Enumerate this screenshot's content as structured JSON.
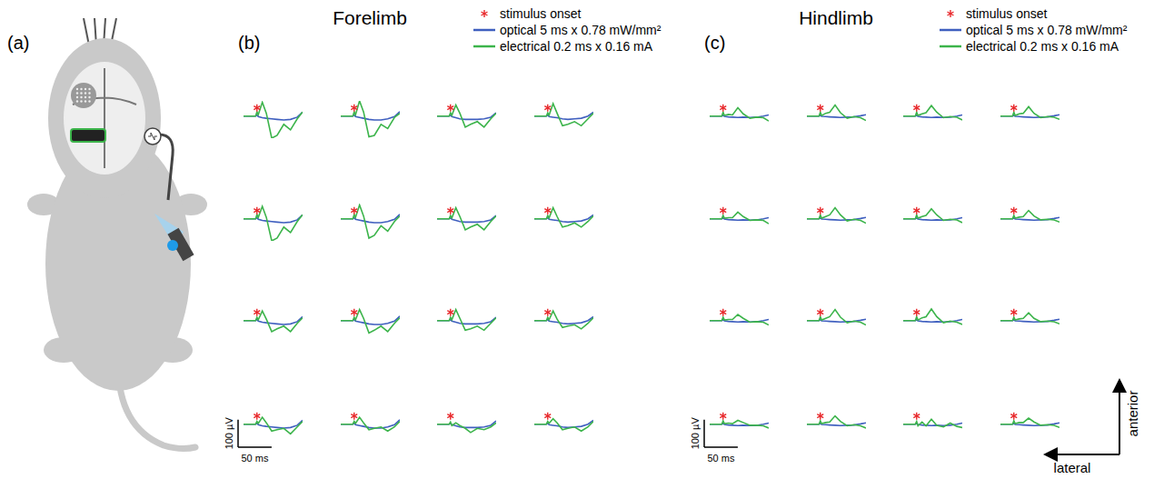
{
  "figure": {
    "panel_label": "(a)",
    "directions": {
      "up": "anterior",
      "left": "lateral"
    }
  },
  "chart_data": [
    {
      "type": "line",
      "title": "Forelimb",
      "letter": "(b)",
      "tick_labels": false,
      "legend": "upper right",
      "x": [
        -20,
        -2,
        0,
        2,
        8,
        14,
        22,
        30,
        40,
        50,
        60,
        68
      ],
      "onset": {
        "name": "stimulus onset",
        "x": 0,
        "marker": "asterisk",
        "color": "#e8272a"
      },
      "series": [
        {
          "name": "optical 5 ms x 0.78 mW/mm²",
          "color": "#3f5fbf"
        },
        {
          "name": "electrical 0.2 ms x 0.16 mA",
          "color": "#3cb44b"
        }
      ],
      "scale_bar": {
        "x": 50,
        "x_label": "50 ms",
        "y": 100,
        "y_label": "100 µV"
      },
      "traces": [
        [
          [
            0,
            0,
            4,
            -2,
            -6,
            -8,
            -10,
            -12,
            -14,
            -12,
            -4,
            14
          ],
          [
            0,
            0,
            15,
            5,
            50,
            10,
            -80,
            -70,
            -30,
            -50,
            -10,
            15
          ]
        ],
        [
          [
            0,
            0,
            4,
            -2,
            -5,
            -8,
            -12,
            -14,
            -14,
            -10,
            -2,
            16
          ],
          [
            0,
            0,
            15,
            5,
            55,
            15,
            -75,
            -70,
            -30,
            -45,
            -5,
            10
          ]
        ],
        [
          [
            0,
            0,
            3,
            -2,
            -6,
            -10,
            -12,
            -12,
            -12,
            -10,
            -4,
            12
          ],
          [
            0,
            0,
            12,
            3,
            40,
            10,
            -40,
            -30,
            -20,
            -40,
            -10,
            10
          ]
        ],
        [
          [
            0,
            0,
            4,
            -2,
            -4,
            -6,
            -10,
            -12,
            -10,
            -8,
            0,
            14
          ],
          [
            0,
            0,
            12,
            3,
            45,
            10,
            -35,
            -30,
            -20,
            -35,
            -10,
            10
          ]
        ],
        [
          [
            0,
            0,
            4,
            -2,
            -6,
            -8,
            -10,
            -12,
            -14,
            -12,
            -4,
            14
          ],
          [
            0,
            0,
            15,
            5,
            45,
            5,
            -80,
            -70,
            -30,
            -50,
            -10,
            15
          ]
        ],
        [
          [
            0,
            0,
            4,
            -2,
            -5,
            -8,
            -12,
            -14,
            -14,
            -10,
            -2,
            16
          ],
          [
            0,
            0,
            15,
            5,
            50,
            10,
            -70,
            -60,
            -25,
            -45,
            -10,
            10
          ]
        ],
        [
          [
            0,
            0,
            3,
            -2,
            -6,
            -10,
            -12,
            -12,
            -12,
            -10,
            -4,
            12
          ],
          [
            0,
            0,
            12,
            3,
            40,
            8,
            -40,
            -30,
            -20,
            -40,
            -10,
            10
          ]
        ],
        [
          [
            0,
            0,
            4,
            -2,
            -4,
            -6,
            -10,
            -12,
            -10,
            -8,
            0,
            14
          ],
          [
            0,
            0,
            12,
            3,
            40,
            8,
            -30,
            -25,
            -15,
            -30,
            -10,
            10
          ]
        ],
        [
          [
            0,
            0,
            4,
            -2,
            -6,
            -8,
            -10,
            -12,
            -14,
            -12,
            -4,
            14
          ],
          [
            0,
            0,
            12,
            3,
            35,
            5,
            -40,
            -30,
            -20,
            -40,
            -10,
            10
          ]
        ],
        [
          [
            0,
            0,
            4,
            -2,
            -5,
            -8,
            -12,
            -14,
            -14,
            -10,
            -2,
            16
          ],
          [
            0,
            0,
            12,
            3,
            40,
            8,
            -45,
            -35,
            -20,
            -40,
            -10,
            10
          ]
        ],
        [
          [
            0,
            0,
            3,
            -2,
            -6,
            -10,
            -12,
            -12,
            -12,
            -10,
            -4,
            12
          ],
          [
            0,
            0,
            12,
            3,
            40,
            8,
            -35,
            -30,
            -20,
            -35,
            -10,
            10
          ]
        ],
        [
          [
            0,
            0,
            4,
            -2,
            -4,
            -6,
            -10,
            -12,
            -10,
            -8,
            0,
            14
          ],
          [
            0,
            0,
            12,
            3,
            35,
            5,
            -25,
            -20,
            -15,
            -30,
            -10,
            10
          ]
        ],
        [
          [
            0,
            0,
            4,
            -2,
            -6,
            -8,
            -10,
            -12,
            -14,
            -12,
            -4,
            14
          ],
          [
            0,
            0,
            10,
            3,
            25,
            5,
            -25,
            -20,
            -15,
            -35,
            -10,
            10
          ]
        ],
        [
          [
            0,
            0,
            4,
            -2,
            -5,
            -8,
            -12,
            -14,
            -14,
            -10,
            -2,
            16
          ],
          [
            0,
            0,
            10,
            3,
            25,
            5,
            -20,
            -15,
            -10,
            -25,
            -10,
            10
          ]
        ],
        [
          [
            0,
            0,
            3,
            -2,
            -6,
            -10,
            -12,
            -12,
            -12,
            -10,
            -4,
            12
          ],
          [
            0,
            0,
            8,
            -5,
            5,
            -5,
            -15,
            -30,
            -15,
            -20,
            -10,
            5
          ]
        ],
        [
          [
            0,
            0,
            4,
            -2,
            -4,
            -6,
            -10,
            -12,
            -10,
            -8,
            0,
            14
          ],
          [
            0,
            0,
            10,
            3,
            20,
            5,
            -20,
            -15,
            -10,
            -25,
            -10,
            10
          ]
        ]
      ]
    },
    {
      "type": "line",
      "title": "Hindlimb",
      "letter": "(c)",
      "tick_labels": false,
      "legend": "upper right",
      "x": [
        -20,
        -2,
        0,
        2,
        8,
        14,
        22,
        30,
        40,
        50,
        60,
        68
      ],
      "onset": {
        "name": "stimulus onset",
        "x": 0,
        "marker": "asterisk",
        "color": "#e8272a"
      },
      "series": [
        {
          "name": "optical 5 ms x 0.78 mW/mm²",
          "color": "#3f5fbf"
        },
        {
          "name": "electrical 0.2 ms x 0.16 mA",
          "color": "#3cb44b"
        }
      ],
      "scale_bar": {
        "x": 50,
        "x_label": "50 ms",
        "y": 100,
        "y_label": "100 µV"
      },
      "traces": [
        [
          [
            0,
            0,
            3,
            -1,
            -3,
            -4,
            -5,
            -4,
            -5,
            -4,
            0,
            4
          ],
          [
            0,
            0,
            14,
            2,
            6,
            4,
            30,
            8,
            -8,
            -4,
            -6,
            -18
          ]
        ],
        [
          [
            0,
            0,
            3,
            -1,
            -2,
            -3,
            -4,
            -5,
            -4,
            -3,
            1,
            5
          ],
          [
            0,
            0,
            14,
            2,
            10,
            14,
            40,
            12,
            -8,
            -2,
            -6,
            -16
          ]
        ],
        [
          [
            0,
            0,
            3,
            -1,
            -3,
            -4,
            -5,
            -4,
            -5,
            -4,
            0,
            4
          ],
          [
            0,
            0,
            14,
            2,
            8,
            12,
            38,
            14,
            -6,
            -2,
            -4,
            -14
          ]
        ],
        [
          [
            0,
            0,
            3,
            -1,
            -2,
            -3,
            -4,
            -5,
            -4,
            -3,
            1,
            5
          ],
          [
            0,
            0,
            14,
            2,
            8,
            10,
            34,
            10,
            -6,
            -2,
            -4,
            -12
          ]
        ],
        [
          [
            0,
            0,
            3,
            -1,
            -3,
            -4,
            -5,
            -4,
            -5,
            -4,
            0,
            4
          ],
          [
            0,
            0,
            12,
            2,
            4,
            4,
            24,
            8,
            -6,
            -4,
            -6,
            -18
          ]
        ],
        [
          [
            0,
            0,
            3,
            -1,
            -2,
            -3,
            -4,
            -5,
            -4,
            -3,
            1,
            5
          ],
          [
            0,
            0,
            14,
            2,
            8,
            14,
            40,
            14,
            -8,
            -2,
            -6,
            -16
          ]
        ],
        [
          [
            0,
            0,
            3,
            -1,
            -3,
            -4,
            -5,
            -4,
            -5,
            -4,
            0,
            4
          ],
          [
            0,
            0,
            14,
            2,
            8,
            12,
            36,
            14,
            -6,
            -2,
            -4,
            -14
          ]
        ],
        [
          [
            0,
            0,
            3,
            -1,
            -2,
            -3,
            -4,
            -5,
            -4,
            -3,
            1,
            5
          ],
          [
            0,
            0,
            12,
            2,
            6,
            8,
            30,
            10,
            -4,
            -2,
            -4,
            -12
          ]
        ],
        [
          [
            0,
            0,
            3,
            -1,
            -3,
            -4,
            -5,
            -4,
            -5,
            -4,
            0,
            4
          ],
          [
            0,
            0,
            12,
            2,
            4,
            4,
            22,
            8,
            -6,
            -4,
            -6,
            -16
          ]
        ],
        [
          [
            0,
            0,
            3,
            -1,
            -2,
            -3,
            -4,
            -5,
            -4,
            -3,
            1,
            5
          ],
          [
            0,
            0,
            14,
            2,
            8,
            14,
            40,
            12,
            -8,
            -2,
            -6,
            -16
          ]
        ],
        [
          [
            0,
            0,
            3,
            -1,
            -3,
            -4,
            -5,
            -4,
            -5,
            -4,
            0,
            4
          ],
          [
            0,
            0,
            14,
            2,
            10,
            14,
            42,
            14,
            -8,
            -2,
            -6,
            -14
          ]
        ],
        [
          [
            0,
            0,
            3,
            -1,
            -2,
            -3,
            -4,
            -5,
            -4,
            -3,
            1,
            5
          ],
          [
            0,
            0,
            12,
            2,
            6,
            8,
            28,
            8,
            -4,
            -2,
            -4,
            -12
          ]
        ],
        [
          [
            0,
            0,
            3,
            -1,
            -3,
            -4,
            -5,
            -4,
            -5,
            -4,
            0,
            4
          ],
          [
            0,
            0,
            12,
            2,
            4,
            2,
            14,
            6,
            -4,
            -4,
            -6,
            -14
          ]
        ],
        [
          [
            0,
            0,
            3,
            -1,
            -2,
            -3,
            -4,
            -5,
            -4,
            -3,
            1,
            5
          ],
          [
            0,
            0,
            12,
            2,
            6,
            8,
            30,
            10,
            -6,
            -2,
            -6,
            -14
          ]
        ],
        [
          [
            0,
            0,
            3,
            -1,
            -3,
            -4,
            -5,
            -4,
            -5,
            -4,
            0,
            4
          ],
          [
            0,
            0,
            10,
            -6,
            8,
            -6,
            18,
            -4,
            -10,
            4,
            -8,
            -12
          ]
        ],
        [
          [
            0,
            0,
            3,
            -1,
            -2,
            -3,
            -4,
            -5,
            -4,
            -3,
            1,
            5
          ],
          [
            0,
            0,
            12,
            2,
            6,
            6,
            22,
            8,
            -4,
            -2,
            -4,
            -12
          ]
        ]
      ]
    }
  ]
}
